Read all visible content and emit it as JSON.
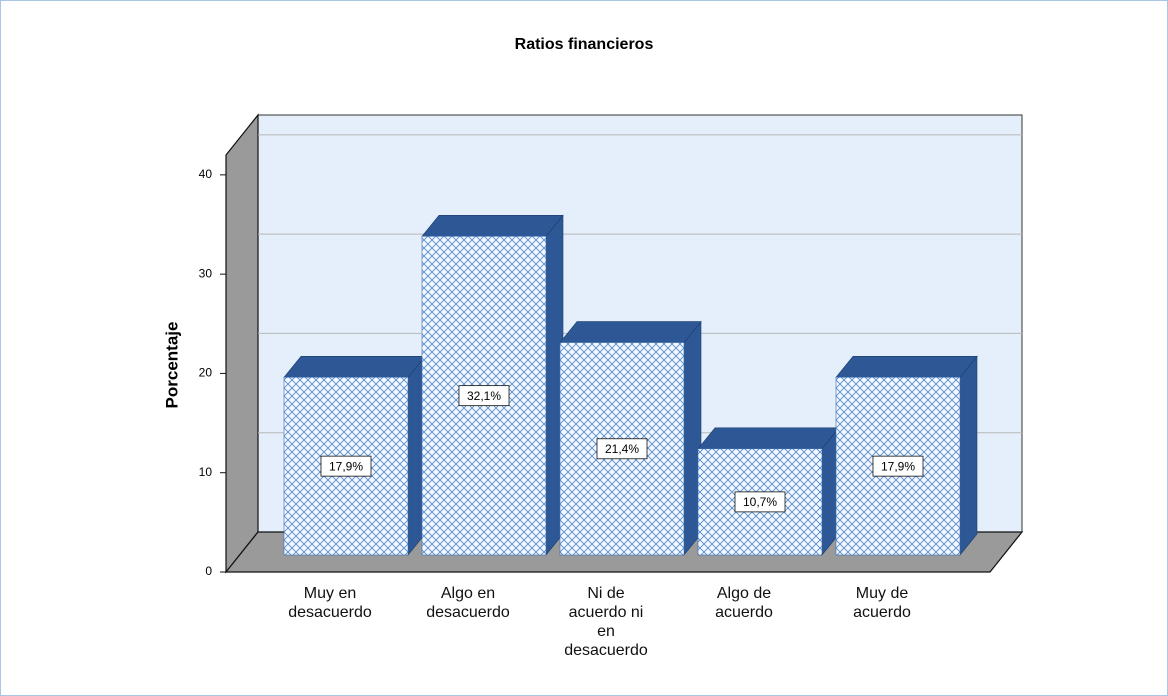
{
  "chart_data": {
    "type": "bar3d",
    "title": "Ratios financieros",
    "y_label": "Porcentaje",
    "categories": [
      "Muy en desacuerdo",
      "Algo en desacuerdo",
      "Ni de acuerdo ni en desacuerdo",
      "Algo de acuerdo",
      "Muy de acuerdo"
    ],
    "values": [
      17.9,
      32.1,
      21.4,
      10.7,
      17.9
    ],
    "value_labels": [
      "17,9%",
      "32,1%",
      "21,4%",
      "10,7%",
      "17,9%"
    ],
    "color": "#2e5895",
    "ylim": [
      0,
      42
    ],
    "yticks": [
      0,
      10,
      20,
      30,
      40
    ],
    "grid": true
  }
}
